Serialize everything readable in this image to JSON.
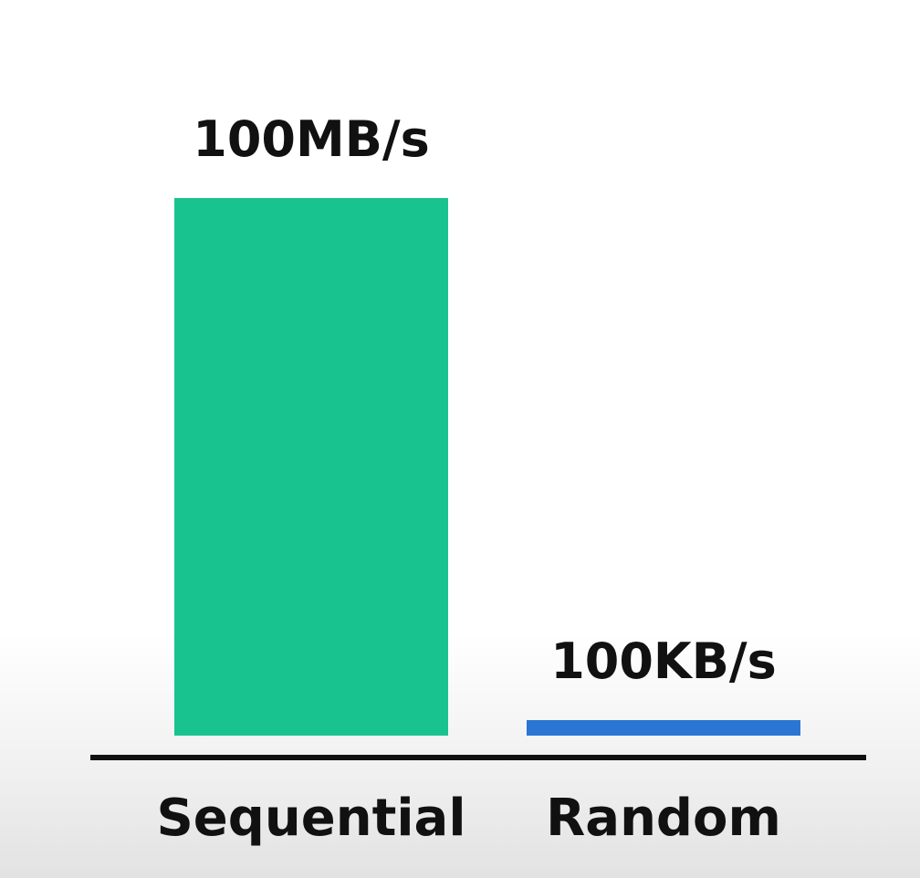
{
  "chart_data": {
    "type": "bar",
    "title": "",
    "xlabel": "",
    "ylabel": "",
    "categories": [
      "Sequential",
      "Random"
    ],
    "values": [
      100000,
      100
    ],
    "value_unit": "KB/s",
    "data_labels": [
      "100MB/s",
      "100KB/s"
    ],
    "colors": [
      "#19c38f",
      "#2a76d2"
    ],
    "axis_color": "#111111",
    "grid": false,
    "legend": "none"
  }
}
